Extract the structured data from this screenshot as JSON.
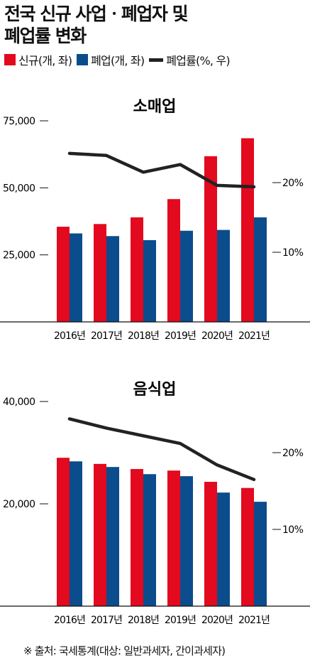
{
  "title": [
    "전국 신규 사업ㆍ폐업자 및",
    "폐업률 변화"
  ],
  "legend": [
    {
      "label": "신규(개, 좌)",
      "color": "#e3091e",
      "kind": "bar"
    },
    {
      "label": "폐업(개, 좌)",
      "color": "#0b4c8c",
      "kind": "bar"
    },
    {
      "label": "폐업률(%, 우)",
      "color": "#222222",
      "kind": "line"
    }
  ],
  "chart_data": [
    {
      "type": "bar",
      "title": "소매업",
      "categories": [
        "2016년",
        "2017년",
        "2018년",
        "2019년",
        "2020년",
        "2021년"
      ],
      "series": [
        {
          "name": "신규(개, 좌)",
          "axis": "left",
          "color": "#e3091e",
          "values": [
            35500,
            36500,
            39000,
            45800,
            61800,
            68500
          ]
        },
        {
          "name": "폐업(개, 좌)",
          "axis": "left",
          "color": "#0b4c8c",
          "values": [
            33000,
            32000,
            30500,
            34000,
            34300,
            39000
          ]
        },
        {
          "name": "폐업률(%, 우)",
          "axis": "right",
          "type": "line",
          "color": "#222222",
          "values": [
            24.2,
            23.9,
            21.5,
            22.6,
            19.6,
            19.4
          ]
        }
      ],
      "y_left": {
        "ticks": [
          "25,000",
          "50,000",
          "75,000"
        ],
        "tick_values": [
          25000,
          50000,
          75000
        ],
        "range": [
          0,
          75000
        ]
      },
      "y_right": {
        "ticks": [
          "10%",
          "20%"
        ],
        "tick_values": [
          10,
          20
        ],
        "range": [
          0,
          30
        ]
      },
      "grid": false
    },
    {
      "type": "bar",
      "title": "음식업",
      "categories": [
        "2016년",
        "2017년",
        "2018년",
        "2019년",
        "2020년",
        "2021년"
      ],
      "series": [
        {
          "name": "신규(개, 좌)",
          "axis": "left",
          "color": "#e3091e",
          "values": [
            29000,
            27800,
            26800,
            26500,
            24300,
            23100
          ]
        },
        {
          "name": "폐업(개, 좌)",
          "axis": "left",
          "color": "#0b4c8c",
          "values": [
            28300,
            27200,
            25800,
            25400,
            22200,
            20400
          ]
        },
        {
          "name": "폐업률(%, 우)",
          "axis": "right",
          "type": "line",
          "color": "#222222",
          "values": [
            24.4,
            23.2,
            22.2,
            21.2,
            18.4,
            16.5
          ]
        }
      ],
      "y_left": {
        "ticks": [
          "20,000",
          "40,000"
        ],
        "tick_values": [
          20000,
          40000
        ],
        "range": [
          0,
          40000
        ]
      },
      "y_right": {
        "ticks": [
          "10%",
          "20%"
        ],
        "tick_values": [
          10,
          20
        ],
        "range": [
          0,
          30
        ]
      },
      "grid": false
    }
  ],
  "source": "※ 출처: 국세통계(대상: 일반과세자, 간이과세자)"
}
